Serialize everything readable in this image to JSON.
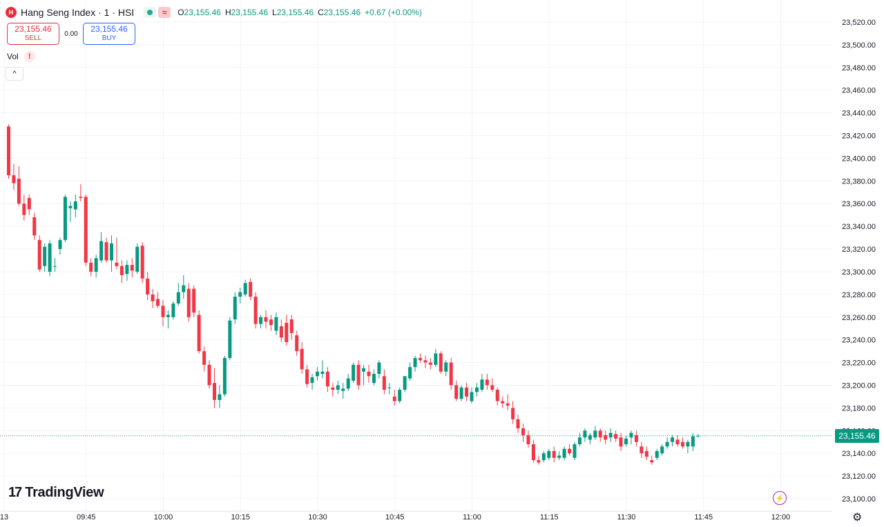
{
  "header": {
    "symbol_icon": "H",
    "symbol_title": "Hang Seng Index · 1 · HSI",
    "ohlc": [
      {
        "key": "O",
        "value": "23,155.46"
      },
      {
        "key": "H",
        "value": "23,155.46"
      },
      {
        "key": "L",
        "value": "23,155.46"
      },
      {
        "key": "C",
        "value": "23,155.46"
      }
    ],
    "change": "+0.67 (+0.00%)",
    "status_icon": "market-open-dot",
    "wave_icon": "≈"
  },
  "trade": {
    "sell_price": "23,155.46",
    "sell_label": "SELL",
    "spread": "0.00",
    "buy_price": "23,155.46",
    "buy_label": "BUY"
  },
  "indicator": {
    "label": "Vol",
    "warning": "!",
    "collapse_icon": "^"
  },
  "logo": {
    "mark": "17",
    "text": "TradingView"
  },
  "price_label": "23,155.46",
  "colors": {
    "up": "#089981",
    "down": "#f23645",
    "grid": "#f0f3fa",
    "text": "#131722"
  },
  "chart_data": {
    "type": "candlestick",
    "interval_minutes": 1,
    "y_ticks": [
      23100,
      23120,
      23140,
      23160,
      23180,
      23200,
      23220,
      23240,
      23260,
      23280,
      23300,
      23320,
      23340,
      23360,
      23380,
      23400,
      23420,
      23440,
      23460,
      23480,
      23500,
      23520
    ],
    "y_tick_labels": [
      "23,100.00",
      "23,120.00",
      "23,140.00",
      "23,160.00",
      "23,180.00",
      "23,200.00",
      "23,220.00",
      "23,240.00",
      "23,260.00",
      "23,280.00",
      "23,300.00",
      "23,320.00",
      "23,340.00",
      "23,360.00",
      "23,380.00",
      "23,400.00",
      "23,420.00",
      "23,440.00",
      "23,460.00",
      "23,480.00",
      "23,500.00",
      "23,520.00"
    ],
    "ylim": [
      23094,
      23538
    ],
    "x_ticks": [
      {
        "label": "13",
        "minute": -35
      },
      {
        "label": "09:45",
        "minute": 15
      },
      {
        "label": "10:00",
        "minute": 30
      },
      {
        "label": "10:15",
        "minute": 45
      },
      {
        "label": "10:30",
        "minute": 60
      },
      {
        "label": "10:45",
        "minute": 75
      },
      {
        "label": "11:00",
        "minute": 90
      },
      {
        "label": "11:15",
        "minute": 105
      },
      {
        "label": "11:30",
        "minute": 120
      },
      {
        "label": "11:45",
        "minute": 135
      },
      {
        "label": "12:00",
        "minute": 150
      }
    ],
    "last_price": 23155.46,
    "candles": [
      [
        23428,
        23430,
        23382,
        23385
      ],
      [
        23385,
        23395,
        23372,
        23378
      ],
      [
        23382,
        23393,
        23358,
        23360
      ],
      [
        23360,
        23368,
        23345,
        23350
      ],
      [
        23365,
        23368,
        23350,
        23355
      ],
      [
        23348,
        23352,
        23328,
        23332
      ],
      [
        23328,
        23332,
        23300,
        23302
      ],
      [
        23305,
        23325,
        23300,
        23322
      ],
      [
        23300,
        23328,
        23296,
        23325
      ],
      [
        23305,
        23312,
        23300,
        23305
      ],
      [
        23320,
        23330,
        23315,
        23328
      ],
      [
        23328,
        23368,
        23326,
        23366
      ],
      [
        23356,
        23362,
        23344,
        23358
      ],
      [
        23355,
        23368,
        23348,
        23362
      ],
      [
        23366,
        23377,
        23362,
        23365
      ],
      [
        23366,
        23368,
        23305,
        23308
      ],
      [
        23308,
        23312,
        23296,
        23300
      ],
      [
        23300,
        23315,
        23295,
        23312
      ],
      [
        23310,
        23335,
        23308,
        23327
      ],
      [
        23326,
        23330,
        23308,
        23310
      ],
      [
        23310,
        23332,
        23300,
        23325
      ],
      [
        23308,
        23330,
        23302,
        23305
      ],
      [
        23305,
        23310,
        23290,
        23297
      ],
      [
        23298,
        23310,
        23292,
        23306
      ],
      [
        23306,
        23312,
        23295,
        23301
      ],
      [
        23300,
        23325,
        23298,
        23322
      ],
      [
        23323,
        23326,
        23290,
        23294
      ],
      [
        23294,
        23300,
        23275,
        23280
      ],
      [
        23280,
        23285,
        23268,
        23274
      ],
      [
        23276,
        23282,
        23268,
        23270
      ],
      [
        23270,
        23275,
        23252,
        23260
      ],
      [
        23260,
        23266,
        23250,
        23262
      ],
      [
        23260,
        23274,
        23258,
        23272
      ],
      [
        23272,
        23290,
        23270,
        23282
      ],
      [
        23282,
        23297,
        23276,
        23288
      ],
      [
        23285,
        23290,
        23256,
        23260
      ],
      [
        23285,
        23288,
        23260,
        23264
      ],
      [
        23262,
        23266,
        23228,
        23230
      ],
      [
        23230,
        23234,
        23212,
        23218
      ],
      [
        23218,
        23222,
        23197,
        23200
      ],
      [
        23202,
        23215,
        23180,
        23187
      ],
      [
        23187,
        23200,
        23180,
        23192
      ],
      [
        23192,
        23226,
        23190,
        23224
      ],
      [
        23224,
        23260,
        23222,
        23257
      ],
      [
        23258,
        23282,
        23254,
        23278
      ],
      [
        23278,
        23286,
        23272,
        23282
      ],
      [
        23280,
        23293,
        23278,
        23290
      ],
      [
        23291,
        23294,
        23275,
        23278
      ],
      [
        23278,
        23282,
        23250,
        23254
      ],
      [
        23254,
        23262,
        23250,
        23260
      ],
      [
        23260,
        23266,
        23250,
        23256
      ],
      [
        23258,
        23262,
        23248,
        23253
      ],
      [
        23248,
        23264,
        23244,
        23260
      ],
      [
        23252,
        23258,
        23238,
        23242
      ],
      [
        23255,
        23262,
        23235,
        23238
      ],
      [
        23258,
        23262,
        23240,
        23246
      ],
      [
        23244,
        23248,
        23226,
        23230
      ],
      [
        23232,
        23238,
        23210,
        23214
      ],
      [
        23214,
        23218,
        23198,
        23201
      ],
      [
        23202,
        23210,
        23196,
        23207
      ],
      [
        23208,
        23216,
        23204,
        23212
      ],
      [
        23210,
        23222,
        23206,
        23212
      ],
      [
        23212,
        23216,
        23194,
        23199
      ],
      [
        23198,
        23202,
        23190,
        23196
      ],
      [
        23196,
        23204,
        23192,
        23200
      ],
      [
        23195,
        23202,
        23188,
        23197
      ],
      [
        23197,
        23210,
        23195,
        23206
      ],
      [
        23204,
        23220,
        23202,
        23218
      ],
      [
        23218,
        23222,
        23196,
        23200
      ],
      [
        23212,
        23218,
        23200,
        23215
      ],
      [
        23212,
        23218,
        23202,
        23208
      ],
      [
        23202,
        23214,
        23200,
        23210
      ],
      [
        23210,
        23222,
        23206,
        23220
      ],
      [
        23208,
        23214,
        23192,
        23196
      ],
      [
        23198,
        23202,
        23192,
        23198
      ],
      [
        23190,
        23196,
        23182,
        23186
      ],
      [
        23186,
        23198,
        23184,
        23196
      ],
      [
        23196,
        23208,
        23194,
        23208
      ],
      [
        23206,
        23220,
        23204,
        23216
      ],
      [
        23216,
        23226,
        23212,
        23224
      ],
      [
        23224,
        23228,
        23220,
        23222
      ],
      [
        23222,
        23226,
        23215,
        23220
      ],
      [
        23220,
        23224,
        23214,
        23218
      ],
      [
        23218,
        23232,
        23216,
        23228
      ],
      [
        23228,
        23230,
        23210,
        23212
      ],
      [
        23212,
        23222,
        23208,
        23220
      ],
      [
        23220,
        23224,
        23196,
        23200
      ],
      [
        23200,
        23204,
        23186,
        23188
      ],
      [
        23188,
        23200,
        23186,
        23198
      ],
      [
        23198,
        23202,
        23186,
        23190
      ],
      [
        23186,
        23198,
        23184,
        23194
      ],
      [
        23194,
        23202,
        23190,
        23198
      ],
      [
        23196,
        23210,
        23194,
        23205
      ],
      [
        23205,
        23210,
        23196,
        23200
      ],
      [
        23200,
        23206,
        23194,
        23196
      ],
      [
        23196,
        23198,
        23182,
        23186
      ],
      [
        23186,
        23190,
        23180,
        23184
      ],
      [
        23184,
        23192,
        23178,
        23182
      ],
      [
        23180,
        23186,
        23166,
        23170
      ],
      [
        23170,
        23174,
        23158,
        23162
      ],
      [
        23162,
        23166,
        23150,
        23156
      ],
      [
        23156,
        23160,
        23145,
        23148
      ],
      [
        23148,
        23152,
        23132,
        23134
      ],
      [
        23134,
        23138,
        23130,
        23132
      ],
      [
        23134,
        23142,
        23132,
        23140
      ],
      [
        23136,
        23144,
        23134,
        23142
      ],
      [
        23142,
        23146,
        23132,
        23136
      ],
      [
        23136,
        23142,
        23134,
        23138
      ],
      [
        23136,
        23146,
        23134,
        23144
      ],
      [
        23144,
        23148,
        23138,
        23140
      ],
      [
        23136,
        23150,
        23134,
        23148
      ],
      [
        23148,
        23158,
        23146,
        23154
      ],
      [
        23154,
        23162,
        23150,
        23160
      ],
      [
        23152,
        23158,
        23148,
        23156
      ],
      [
        23154,
        23164,
        23152,
        23160
      ],
      [
        23160,
        23162,
        23150,
        23154
      ],
      [
        23156,
        23160,
        23148,
        23152
      ],
      [
        23154,
        23162,
        23150,
        23158
      ],
      [
        23157,
        23160,
        23150,
        23153
      ],
      [
        23154,
        23158,
        23142,
        23146
      ],
      [
        23148,
        23156,
        23146,
        23153
      ],
      [
        23154,
        23160,
        23148,
        23158
      ],
      [
        23156,
        23160,
        23146,
        23150
      ],
      [
        23146,
        23150,
        23136,
        23140
      ],
      [
        23142,
        23146,
        23134,
        23137
      ],
      [
        23134,
        23138,
        23130,
        23132
      ],
      [
        23136,
        23144,
        23134,
        23142
      ],
      [
        23140,
        23148,
        23138,
        23146
      ],
      [
        23146,
        23154,
        23144,
        23150
      ],
      [
        23150,
        23156,
        23146,
        23154
      ],
      [
        23152,
        23156,
        23146,
        23148
      ],
      [
        23150,
        23154,
        23144,
        23146
      ],
      [
        23146,
        23152,
        23140,
        23150
      ],
      [
        23146,
        23158,
        23142,
        23155
      ],
      [
        23155.46,
        23157,
        23154,
        23155.46
      ]
    ]
  }
}
